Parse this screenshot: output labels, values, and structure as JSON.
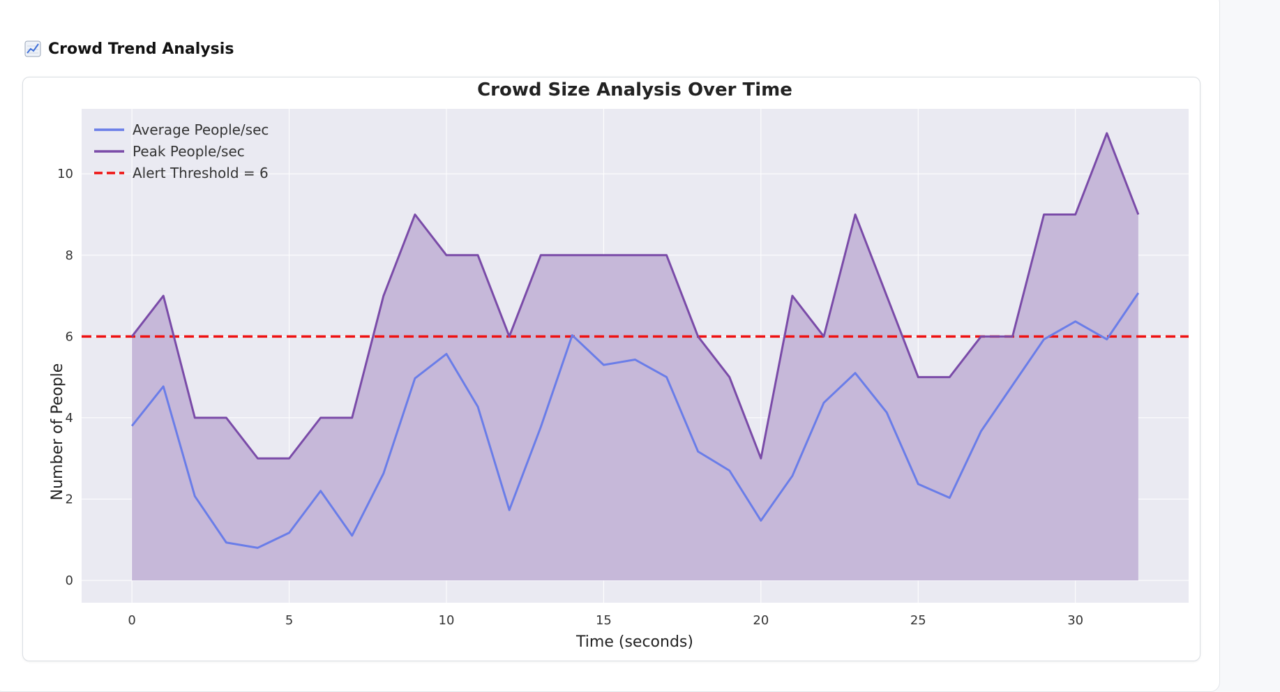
{
  "section": {
    "title": "Crowd Trend Analysis",
    "icon": "chart-increasing-icon"
  },
  "chart_data": {
    "type": "line",
    "title": "Crowd Size Analysis Over Time",
    "xlabel": "Time (seconds)",
    "ylabel": "Number of People",
    "xlim": [
      -1.6,
      33.6
    ],
    "ylim": [
      -0.55,
      11.6
    ],
    "xticks": [
      0,
      5,
      10,
      15,
      20,
      25,
      30
    ],
    "yticks": [
      0,
      2,
      4,
      6,
      8,
      10
    ],
    "grid": true,
    "legend_position": "top-left",
    "x": [
      0,
      1,
      2,
      3,
      4,
      5,
      6,
      7,
      8,
      9,
      10,
      11,
      12,
      13,
      14,
      15,
      16,
      17,
      18,
      19,
      20,
      21,
      22,
      23,
      24,
      25,
      26,
      27,
      28,
      29,
      30,
      31,
      32
    ],
    "series": [
      {
        "name": "Average People/sec",
        "color": "#6a7de8",
        "values": [
          3.8,
          4.77,
          2.07,
          0.93,
          0.8,
          1.17,
          2.2,
          1.1,
          2.63,
          4.97,
          5.57,
          4.27,
          1.73,
          3.77,
          6.03,
          5.3,
          5.43,
          5.0,
          3.17,
          2.7,
          1.47,
          2.57,
          4.37,
          5.1,
          4.13,
          2.37,
          2.03,
          3.67,
          4.8,
          5.93,
          6.37,
          5.93,
          7.07
        ]
      },
      {
        "name": "Peak People/sec",
        "color": "#7a4ba8",
        "values": [
          6,
          7,
          4,
          4,
          3,
          3,
          4,
          4,
          7,
          9,
          8,
          8,
          6,
          8,
          8,
          8,
          8,
          8,
          6,
          5,
          3,
          7,
          6,
          9,
          7,
          5,
          5,
          6,
          6,
          9,
          9,
          11,
          9
        ]
      }
    ],
    "threshold": {
      "name": "Alert Threshold = 6",
      "value": 6,
      "color": "#ee1111"
    },
    "fill_color": "#c6b8d9",
    "plot_background": "#eaeaf2"
  }
}
